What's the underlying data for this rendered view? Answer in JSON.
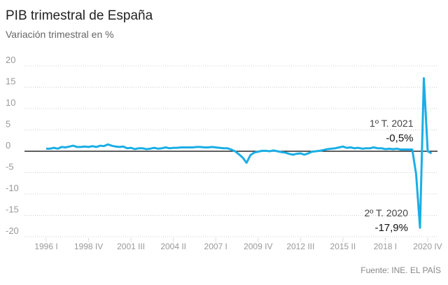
{
  "chart_data": {
    "type": "line",
    "title": "PIB trimestral de España",
    "subtitle": "Variación trimestral en %",
    "source": "Fuente: INE. EL PAÍS",
    "categories": [
      "1996 I",
      null,
      null,
      null,
      null,
      null,
      null,
      null,
      null,
      null,
      null,
      "1998 IV",
      null,
      null,
      null,
      null,
      null,
      null,
      null,
      null,
      null,
      null,
      "2001 III",
      null,
      null,
      null,
      null,
      null,
      null,
      null,
      null,
      null,
      null,
      "2004 II",
      null,
      null,
      null,
      null,
      null,
      null,
      null,
      null,
      null,
      null,
      "2007 I",
      null,
      null,
      null,
      null,
      null,
      null,
      null,
      null,
      null,
      null,
      "2009 IV",
      null,
      null,
      null,
      null,
      null,
      null,
      null,
      null,
      null,
      null,
      "2012 III",
      null,
      null,
      null,
      null,
      null,
      null,
      null,
      null,
      null,
      null,
      "2015 II",
      null,
      null,
      null,
      null,
      null,
      null,
      null,
      null,
      null,
      null,
      "2018 I",
      null,
      null,
      null,
      null,
      null,
      null,
      null,
      null,
      null,
      null,
      "2020 IV",
      null
    ],
    "series": [
      {
        "color": "#1aaee5",
        "values": [
          0.6,
          0.6,
          0.8,
          0.6,
          1.0,
          0.9,
          1.1,
          1.3,
          1.0,
          1.0,
          1.1,
          1.0,
          1.2,
          1.0,
          1.3,
          1.2,
          1.6,
          1.3,
          1.1,
          1.0,
          1.1,
          0.7,
          0.8,
          0.5,
          0.7,
          0.7,
          0.5,
          0.6,
          0.8,
          0.6,
          0.7,
          0.9,
          0.7,
          0.8,
          0.8,
          0.9,
          0.9,
          0.9,
          0.9,
          1.0,
          1.0,
          0.9,
          0.9,
          1.0,
          0.9,
          0.8,
          0.7,
          0.7,
          0.4,
          0.0,
          -0.7,
          -1.5,
          -2.7,
          -0.9,
          -0.3,
          -0.1,
          0.1,
          0.1,
          0.0,
          0.2,
          0.0,
          -0.2,
          -0.3,
          -0.6,
          -0.8,
          -0.6,
          -0.5,
          -0.8,
          -0.5,
          -0.1,
          0.0,
          0.1,
          0.3,
          0.5,
          0.6,
          0.7,
          0.9,
          1.1,
          0.8,
          0.9,
          0.7,
          0.8,
          0.6,
          0.7,
          0.7,
          0.9,
          0.7,
          0.7,
          0.5,
          0.6,
          0.5,
          0.6,
          0.4,
          0.4,
          0.4,
          0.4,
          -5.4,
          -17.9,
          17.1,
          0.0,
          -0.5
        ],
        "value_labels": [
          null,
          null,
          null,
          null,
          null,
          null,
          null,
          null,
          null,
          null,
          null,
          null,
          null,
          null,
          null,
          null,
          null,
          null,
          null,
          null,
          null,
          null,
          null,
          null,
          null,
          null,
          null,
          null,
          null,
          null,
          null,
          null,
          null,
          null,
          null,
          null,
          null,
          null,
          null,
          null,
          null,
          null,
          null,
          null,
          null,
          null,
          null,
          null,
          null,
          null,
          null,
          null,
          null,
          null,
          null,
          null,
          null,
          null,
          null,
          null,
          null,
          null,
          null,
          null,
          null,
          null,
          null,
          null,
          null,
          null,
          null,
          null,
          null,
          null,
          null,
          null,
          null,
          null,
          null,
          null,
          null,
          null,
          null,
          null,
          null,
          null,
          null,
          null,
          null,
          null,
          null,
          null,
          null,
          null,
          null,
          null,
          null,
          "-17,9%",
          null,
          null,
          "-0,5%"
        ]
      }
    ],
    "annotations": [
      "2º T. 2020",
      "1º T. 2021"
    ],
    "ylim": [
      -20,
      20
    ],
    "yticks": [
      -20,
      -15,
      -10,
      -5,
      0,
      5,
      10,
      15,
      20
    ],
    "grid": true
  }
}
